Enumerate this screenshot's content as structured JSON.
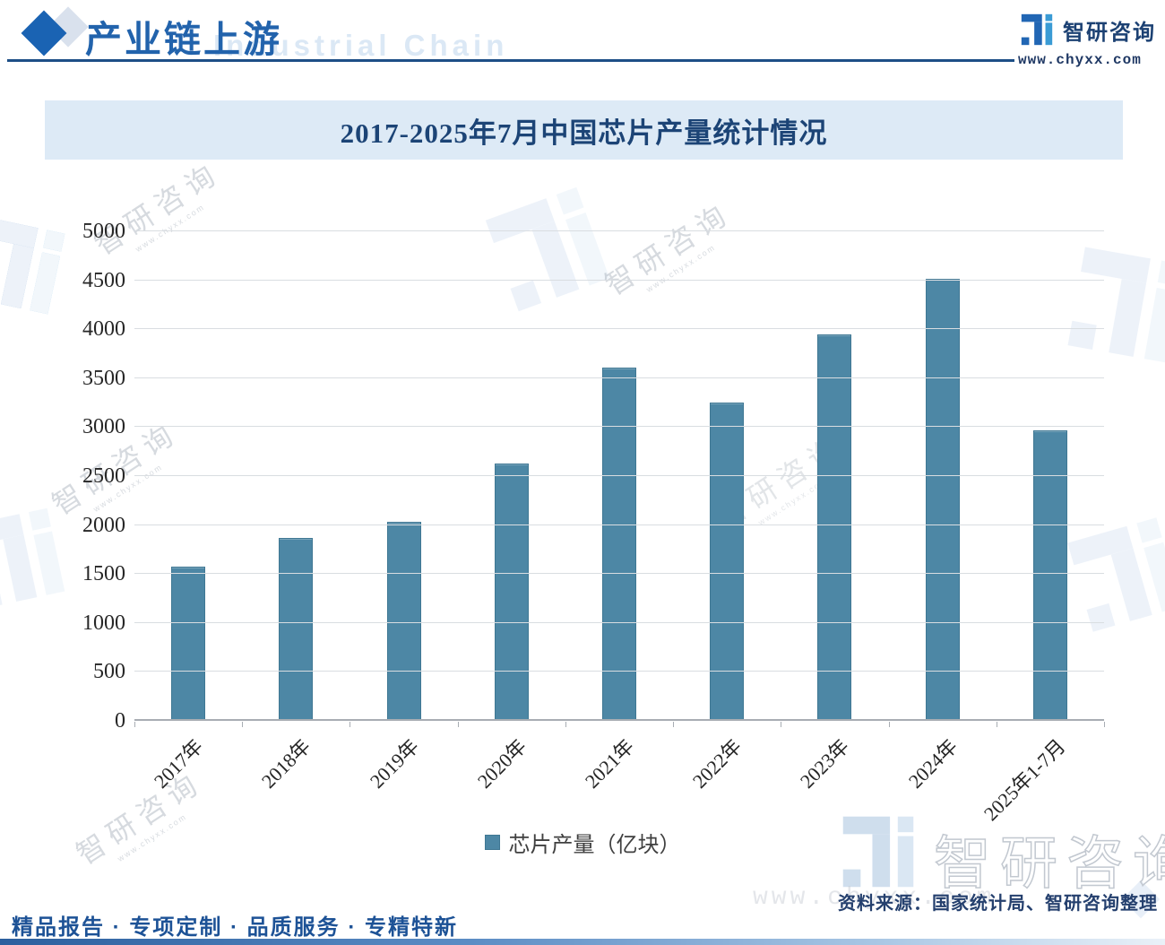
{
  "header": {
    "title": "产业链上游",
    "watermark_en": "Industrial Chain",
    "brand": {
      "name": "智研咨询",
      "site": "www.chyxx.com"
    }
  },
  "chart_data": {
    "type": "bar",
    "title": "2017-2025年7月中国芯片产量统计情况",
    "categories": [
      "2017年",
      "2018年",
      "2019年",
      "2020年",
      "2021年",
      "2022年",
      "2023年",
      "2024年",
      "2025年1-7月"
    ],
    "values": [
      1570,
      1860,
      2025,
      2615,
      3595,
      3245,
      3940,
      4510,
      2955
    ],
    "series_name": "芯片产量（亿块）",
    "xlabel": "",
    "ylabel": "",
    "ylim": [
      0,
      5000
    ],
    "ytick_step": 500,
    "grid": true,
    "legend_position": "bottom",
    "bar_color": "#4d87a5"
  },
  "legend": {
    "label": "芯片产量（亿块）",
    "swatch_color": "#4d87a5"
  },
  "source": {
    "text": "资料来源：国家统计局、智研咨询整理"
  },
  "footer": {
    "text": "精品报告 · 专项定制 · 品质服务 · 专精特新"
  },
  "watermark": {
    "brand": "智研咨询",
    "site": "www.chyxx.com"
  },
  "colors": {
    "accent_blue": "#1a63b3",
    "navy": "#1c4476",
    "band_bg": "#ddeaf6",
    "grid": "#d9dde1",
    "axis": "#a8adb3",
    "bar": "#4d87a5",
    "footer_bar_from": "#2c5f9e",
    "footer_bar_to": "#eaf1f8"
  }
}
